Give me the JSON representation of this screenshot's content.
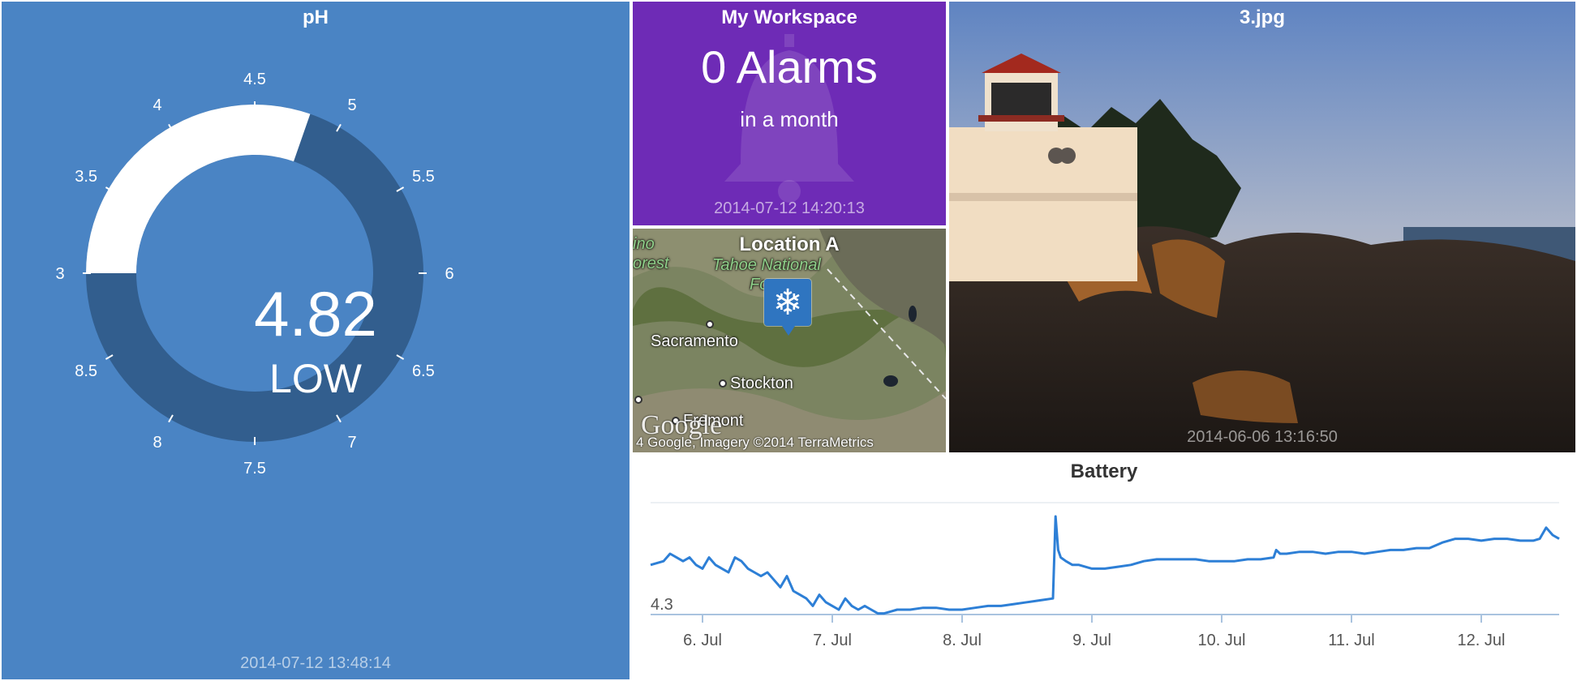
{
  "ph_tile": {
    "title": "pH",
    "value": "4.82",
    "status": "LOW",
    "timestamp": "2014-07-12 13:48:14",
    "colors": {
      "background": "#4a84c4",
      "track": "#325e8e",
      "fill": "#ffffff"
    },
    "gauge": {
      "min": 3,
      "max": 9,
      "value": 4.82,
      "ticks": [
        {
          "label": "3",
          "value": 3
        },
        {
          "label": "3.5",
          "value": 3.5
        },
        {
          "label": "4",
          "value": 4
        },
        {
          "label": "4.5",
          "value": 4.5
        },
        {
          "label": "5",
          "value": 5
        },
        {
          "label": "5.5",
          "value": 5.5
        },
        {
          "label": "6",
          "value": 6
        },
        {
          "label": "6.5",
          "value": 6.5
        },
        {
          "label": "7",
          "value": 7
        },
        {
          "label": "7.5",
          "value": 7.5
        },
        {
          "label": "8",
          "value": 8
        },
        {
          "label": "8.5",
          "value": 8.5
        }
      ]
    }
  },
  "workspace_tile": {
    "title": "My Workspace",
    "count": "0 Alarms",
    "period": "in a month",
    "timestamp": "2014-07-12 14:20:13",
    "icon": "bell-icon",
    "color": "#6e2bb6"
  },
  "map_tile": {
    "title": "Location A",
    "labels": {
      "forest_left": "ino",
      "forest_left2": "orest",
      "tahoe": "Tahoe National",
      "tahoe2": "Fo",
      "sacramento": "Sacramento",
      "stockton": "Stockton",
      "fremont": "Fremont"
    },
    "google_logo": "Google",
    "copyright": "4 Google, Imagery ©2014 TerraMetrics",
    "pin_icon": "snowflake-icon"
  },
  "image_tile": {
    "title": "3.jpg",
    "timestamp": "2014-06-06 13:16:50"
  },
  "battery_chart": {
    "title": "Battery",
    "y_tick_label": "4.3",
    "x_tick_labels": [
      "6. Jul",
      "7. Jul",
      "8. Jul",
      "9. Jul",
      "10. Jul",
      "11. Jul",
      "12. Jul"
    ]
  },
  "chart_data": {
    "type": "line",
    "title": "Battery",
    "xlabel": "",
    "ylabel": "",
    "x_unit": "days (July 2014)",
    "categories": [
      "6. Jul",
      "7. Jul",
      "8. Jul",
      "9. Jul",
      "10. Jul",
      "11. Jul",
      "12. Jul"
    ],
    "xlim": [
      5.6,
      12.6
    ],
    "ylim": [
      4.3,
      4.6
    ],
    "y_ticks": [
      4.3
    ],
    "color": "#2d7fd6",
    "grid": false,
    "x": [
      5.6,
      5.7,
      5.75,
      5.8,
      5.85,
      5.9,
      5.95,
      6.0,
      6.05,
      6.1,
      6.15,
      6.2,
      6.25,
      6.3,
      6.35,
      6.4,
      6.45,
      6.5,
      6.55,
      6.6,
      6.65,
      6.7,
      6.75,
      6.8,
      6.85,
      6.9,
      6.95,
      7.0,
      7.05,
      7.1,
      7.15,
      7.2,
      7.25,
      7.3,
      7.35,
      7.4,
      7.45,
      7.5,
      7.55,
      7.6,
      7.7,
      7.8,
      7.9,
      8.0,
      8.1,
      8.2,
      8.3,
      8.4,
      8.5,
      8.6,
      8.7,
      8.72,
      8.74,
      8.76,
      8.8,
      8.85,
      8.9,
      9.0,
      9.1,
      9.2,
      9.3,
      9.4,
      9.5,
      9.6,
      9.7,
      9.8,
      9.9,
      10.0,
      10.1,
      10.2,
      10.3,
      10.4,
      10.42,
      10.45,
      10.5,
      10.6,
      10.7,
      10.8,
      10.9,
      11.0,
      11.1,
      11.2,
      11.3,
      11.4,
      11.5,
      11.6,
      11.7,
      11.8,
      11.9,
      12.0,
      12.1,
      12.2,
      12.3,
      12.4,
      12.45,
      12.5,
      12.55,
      12.6
    ],
    "y": [
      4.42,
      4.43,
      4.45,
      4.44,
      4.43,
      4.44,
      4.42,
      4.41,
      4.44,
      4.42,
      4.41,
      4.4,
      4.44,
      4.43,
      4.41,
      4.4,
      4.39,
      4.4,
      4.38,
      4.36,
      4.39,
      4.35,
      4.34,
      4.33,
      4.31,
      4.34,
      4.32,
      4.31,
      4.3,
      4.33,
      4.31,
      4.3,
      4.31,
      4.3,
      4.29,
      4.29,
      4.295,
      4.3,
      4.3,
      4.3,
      4.305,
      4.305,
      4.3,
      4.3,
      4.305,
      4.31,
      4.31,
      4.315,
      4.32,
      4.325,
      4.33,
      4.55,
      4.46,
      4.44,
      4.43,
      4.42,
      4.42,
      4.41,
      4.41,
      4.415,
      4.42,
      4.43,
      4.435,
      4.435,
      4.435,
      4.435,
      4.43,
      4.43,
      4.43,
      4.435,
      4.435,
      4.44,
      4.46,
      4.45,
      4.45,
      4.455,
      4.455,
      4.45,
      4.455,
      4.455,
      4.45,
      4.455,
      4.46,
      4.46,
      4.465,
      4.465,
      4.48,
      4.49,
      4.49,
      4.485,
      4.49,
      4.49,
      4.485,
      4.485,
      4.49,
      4.52,
      4.5,
      4.49
    ]
  }
}
